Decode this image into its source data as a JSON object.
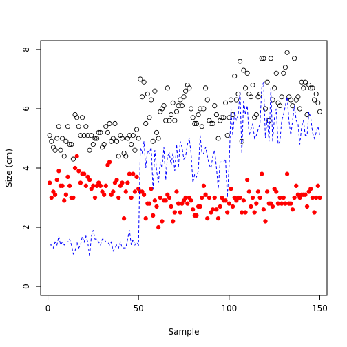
{
  "chart_data": {
    "type": "scatter",
    "title": "",
    "xlabel": "Sample",
    "ylabel": "Size (cm)",
    "xlim": [
      -4,
      154
    ],
    "ylim": [
      -0.3,
      8.3
    ],
    "x_ticks": [
      0,
      50,
      100,
      150
    ],
    "y_ticks": [
      0,
      2,
      4,
      6,
      8
    ],
    "grid": false,
    "legend": "none",
    "series": [
      {
        "style": "open-circle",
        "color": "#000000",
        "values": [
          5.1,
          4.9,
          4.7,
          4.6,
          5.0,
          5.4,
          4.6,
          5.0,
          4.4,
          4.9,
          5.4,
          4.8,
          4.8,
          4.3,
          5.8,
          5.7,
          5.4,
          5.1,
          5.7,
          5.1,
          5.4,
          5.1,
          4.6,
          5.1,
          4.8,
          5.0,
          5.0,
          5.2,
          5.2,
          4.7,
          4.8,
          5.4,
          5.2,
          5.5,
          4.9,
          5.0,
          5.5,
          4.9,
          4.4,
          5.1,
          5.0,
          4.5,
          4.4,
          5.0,
          5.1,
          4.8,
          5.1,
          4.6,
          5.3,
          5.0,
          7.0,
          6.4,
          6.9,
          5.5,
          6.5,
          5.7,
          6.3,
          4.9,
          6.6,
          5.2,
          5.0,
          5.9,
          6.0,
          6.1,
          5.6,
          6.7,
          5.6,
          5.8,
          6.2,
          5.6,
          5.9,
          6.1,
          6.3,
          6.1,
          6.4,
          6.6,
          6.8,
          6.7,
          6.0,
          5.7,
          5.5,
          5.5,
          5.8,
          6.0,
          5.4,
          6.0,
          6.7,
          6.3,
          5.6,
          5.5,
          5.5,
          6.1,
          5.8,
          5.0,
          5.6,
          5.7,
          5.7,
          6.2,
          5.1,
          5.7,
          6.3,
          5.8,
          7.1,
          6.3,
          6.5,
          7.6,
          4.9,
          7.3,
          6.7,
          7.2,
          6.5,
          6.4,
          6.8,
          5.7,
          5.8,
          6.4,
          6.5,
          7.7,
          7.7,
          6.0,
          6.9,
          5.6,
          7.7,
          6.3,
          6.7,
          7.2,
          6.2,
          6.1,
          6.4,
          7.2,
          7.4,
          7.9,
          6.4,
          6.3,
          6.1,
          7.7,
          6.3,
          6.4,
          6.0,
          6.9,
          6.7,
          6.9,
          5.8,
          6.8,
          6.7,
          6.7,
          6.3,
          6.5,
          6.2,
          5.9
        ]
      },
      {
        "style": "filled-circle",
        "color": "#ff0000",
        "values": [
          3.5,
          3.0,
          3.2,
          3.1,
          3.6,
          3.9,
          3.4,
          3.4,
          2.9,
          3.1,
          3.7,
          3.4,
          3.0,
          3.0,
          4.0,
          4.4,
          3.9,
          3.5,
          3.8,
          3.8,
          3.4,
          3.7,
          3.6,
          3.3,
          3.4,
          3.0,
          3.4,
          3.5,
          3.4,
          3.2,
          3.1,
          3.4,
          4.1,
          4.2,
          3.1,
          3.2,
          3.5,
          3.6,
          3.0,
          3.4,
          3.5,
          2.3,
          3.2,
          3.5,
          3.8,
          3.0,
          3.8,
          3.2,
          3.7,
          3.3,
          3.2,
          3.2,
          3.1,
          2.3,
          2.8,
          2.8,
          3.3,
          2.4,
          2.9,
          2.7,
          2.0,
          3.0,
          2.2,
          2.9,
          2.9,
          3.1,
          3.0,
          2.7,
          2.2,
          2.5,
          3.2,
          2.8,
          2.5,
          2.8,
          2.9,
          3.0,
          2.8,
          3.0,
          2.9,
          2.6,
          2.4,
          2.4,
          2.7,
          2.7,
          3.0,
          3.4,
          3.1,
          2.3,
          3.0,
          2.5,
          2.6,
          3.0,
          2.6,
          2.3,
          2.7,
          3.0,
          2.9,
          2.9,
          2.5,
          2.8,
          3.3,
          2.7,
          3.0,
          2.9,
          3.0,
          3.0,
          2.5,
          2.9,
          2.5,
          3.6,
          3.2,
          2.7,
          3.0,
          2.5,
          2.8,
          3.2,
          3.0,
          3.8,
          2.6,
          2.2,
          3.2,
          2.8,
          2.8,
          2.7,
          3.3,
          3.2,
          2.8,
          3.0,
          2.8,
          3.0,
          2.8,
          3.8,
          2.8,
          2.8,
          2.6,
          3.0,
          3.4,
          3.1,
          3.0,
          3.1,
          3.1,
          3.1,
          2.7,
          3.2,
          3.3,
          3.0,
          2.5,
          3.0,
          3.4,
          3.0
        ]
      },
      {
        "style": "dashed-line",
        "color": "#0000ff",
        "values": [
          1.4,
          1.4,
          1.3,
          1.5,
          1.4,
          1.7,
          1.4,
          1.5,
          1.4,
          1.5,
          1.5,
          1.6,
          1.4,
          1.1,
          1.2,
          1.5,
          1.3,
          1.4,
          1.7,
          1.5,
          1.7,
          1.5,
          1.0,
          1.7,
          1.9,
          1.6,
          1.6,
          1.5,
          1.4,
          1.6,
          1.6,
          1.5,
          1.5,
          1.4,
          1.5,
          1.2,
          1.3,
          1.4,
          1.3,
          1.5,
          1.3,
          1.3,
          1.3,
          1.6,
          1.9,
          1.4,
          1.6,
          1.4,
          1.5,
          1.4,
          4.7,
          4.5,
          4.9,
          4.0,
          4.6,
          4.5,
          4.7,
          3.3,
          4.6,
          3.9,
          3.5,
          4.2,
          4.0,
          4.7,
          3.6,
          4.4,
          4.5,
          4.1,
          4.5,
          3.9,
          4.8,
          4.0,
          4.9,
          4.7,
          4.3,
          4.4,
          4.8,
          5.0,
          4.5,
          3.5,
          3.8,
          3.7,
          3.9,
          5.1,
          4.5,
          4.5,
          4.7,
          4.4,
          4.1,
          4.0,
          4.4,
          4.6,
          4.0,
          3.3,
          4.2,
          4.2,
          4.2,
          4.3,
          3.0,
          4.1,
          6.0,
          5.1,
          5.9,
          5.6,
          5.8,
          6.6,
          4.5,
          6.3,
          5.8,
          6.1,
          5.1,
          5.3,
          5.5,
          5.0,
          5.1,
          5.3,
          5.5,
          6.7,
          6.9,
          5.0,
          5.7,
          4.9,
          6.7,
          4.9,
          5.7,
          6.0,
          4.8,
          4.9,
          5.6,
          5.8,
          6.1,
          6.4,
          5.6,
          5.1,
          5.6,
          6.1,
          5.6,
          5.5,
          4.8,
          5.4,
          5.6,
          5.1,
          5.1,
          5.9,
          5.7,
          5.2,
          5.0,
          5.2,
          5.4,
          5.1
        ]
      }
    ]
  }
}
